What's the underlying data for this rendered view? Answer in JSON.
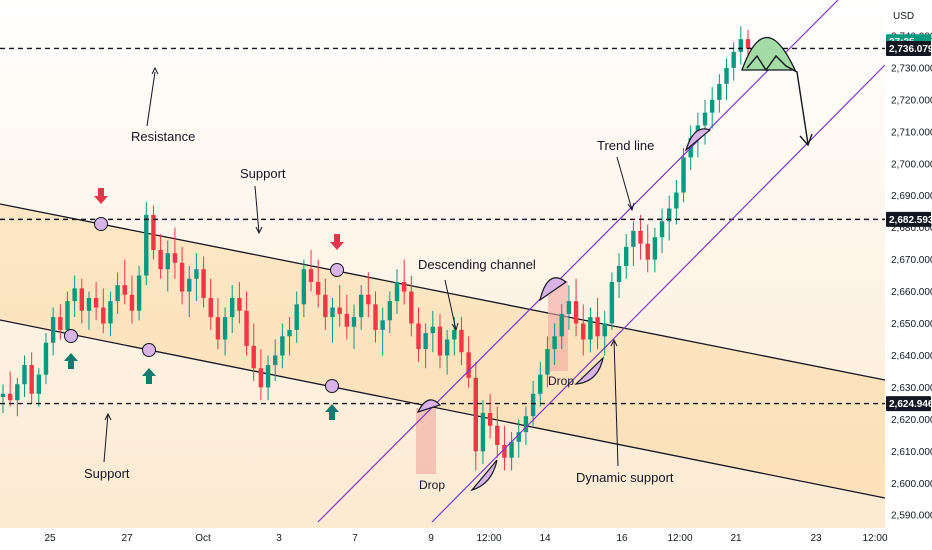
{
  "chart_data": {
    "type": "candlestick",
    "currency": "USD",
    "y_ticks": [
      "2,590.000",
      "2,600.000",
      "2,610.000",
      "2,620.000",
      "2,630.000",
      "2,640.000",
      "2,650.000",
      "2,660.000",
      "2,670.000",
      "2,680.000",
      "2,690.000",
      "2,700.000",
      "2,710.000",
      "2,720.000",
      "2,730.000",
      "2,740.000"
    ],
    "x_ticks": [
      "25",
      "27",
      "Oct",
      "3",
      "7",
      "9",
      "12:00",
      "14",
      "16",
      "12:00",
      "21",
      "23",
      "12:00"
    ],
    "ylim": [
      2586,
      2750
    ],
    "price_tags": [
      {
        "label": "27:35",
        "value": 2738.2,
        "color": "#089981"
      },
      {
        "label": "2,736.079",
        "value": 2736.079,
        "color": "#131722"
      },
      {
        "label": "2,682.593",
        "value": 2682.593,
        "color": "#131722"
      },
      {
        "label": "2,624.946",
        "value": 2624.946,
        "color": "#131722"
      }
    ],
    "levels": [
      {
        "name": "Resistance",
        "value": 2736.079
      },
      {
        "name": "Support",
        "value": 2682.593
      },
      {
        "name": "Support",
        "value": 2624.946
      }
    ],
    "annotations": [
      "Resistance",
      "Support",
      "Support",
      "Descending channel",
      "Trend line",
      "Dynamic support",
      "Drop",
      "Drop"
    ],
    "candles_ohlc": [
      [
        2627,
        2631,
        2622,
        2628
      ],
      [
        2628,
        2635,
        2624,
        2626
      ],
      [
        2626,
        2633,
        2621,
        2631
      ],
      [
        2631,
        2640,
        2627,
        2637
      ],
      [
        2637,
        2641,
        2625,
        2628
      ],
      [
        2628,
        2636,
        2624,
        2634
      ],
      [
        2634,
        2647,
        2631,
        2644
      ],
      [
        2644,
        2655,
        2640,
        2652
      ],
      [
        2652,
        2656,
        2645,
        2648
      ],
      [
        2648,
        2660,
        2645,
        2657
      ],
      [
        2657,
        2665,
        2652,
        2661
      ],
      [
        2661,
        2664,
        2650,
        2654
      ],
      [
        2654,
        2660,
        2648,
        2658
      ],
      [
        2658,
        2663,
        2651,
        2655
      ],
      [
        2655,
        2661,
        2647,
        2650
      ],
      [
        2650,
        2660,
        2646,
        2657
      ],
      [
        2657,
        2666,
        2653,
        2662
      ],
      [
        2662,
        2670,
        2656,
        2659
      ],
      [
        2659,
        2665,
        2650,
        2654
      ],
      [
        2654,
        2668,
        2651,
        2665
      ],
      [
        2665,
        2688,
        2662,
        2684
      ],
      [
        2684,
        2687,
        2670,
        2673
      ],
      [
        2673,
        2678,
        2664,
        2667
      ],
      [
        2667,
        2676,
        2660,
        2672
      ],
      [
        2672,
        2680,
        2664,
        2669
      ],
      [
        2669,
        2674,
        2656,
        2660
      ],
      [
        2660,
        2668,
        2652,
        2664
      ],
      [
        2664,
        2672,
        2657,
        2667
      ],
      [
        2667,
        2671,
        2655,
        2658
      ],
      [
        2658,
        2664,
        2648,
        2652
      ],
      [
        2652,
        2658,
        2642,
        2645
      ],
      [
        2645,
        2655,
        2640,
        2652
      ],
      [
        2652,
        2662,
        2647,
        2658
      ],
      [
        2658,
        2663,
        2650,
        2654
      ],
      [
        2654,
        2660,
        2640,
        2643
      ],
      [
        2643,
        2650,
        2632,
        2636
      ],
      [
        2636,
        2642,
        2626,
        2630
      ],
      [
        2630,
        2640,
        2626,
        2637
      ],
      [
        2637,
        2645,
        2632,
        2640
      ],
      [
        2640,
        2650,
        2636,
        2646
      ],
      [
        2646,
        2652,
        2640,
        2648
      ],
      [
        2648,
        2660,
        2644,
        2656
      ],
      [
        2656,
        2670,
        2652,
        2667
      ],
      [
        2667,
        2673,
        2660,
        2663
      ],
      [
        2663,
        2670,
        2655,
        2659
      ],
      [
        2659,
        2664,
        2648,
        2652
      ],
      [
        2652,
        2658,
        2644,
        2655
      ],
      [
        2655,
        2662,
        2649,
        2653
      ],
      [
        2653,
        2659,
        2645,
        2649
      ],
      [
        2649,
        2656,
        2642,
        2652
      ],
      [
        2652,
        2662,
        2648,
        2659
      ],
      [
        2659,
        2666,
        2652,
        2656
      ],
      [
        2656,
        2660,
        2644,
        2648
      ],
      [
        2648,
        2655,
        2640,
        2651
      ],
      [
        2651,
        2660,
        2647,
        2657
      ],
      [
        2657,
        2667,
        2653,
        2663
      ],
      [
        2663,
        2670,
        2656,
        2660
      ],
      [
        2660,
        2665,
        2646,
        2650
      ],
      [
        2650,
        2655,
        2638,
        2642
      ],
      [
        2642,
        2650,
        2636,
        2647
      ],
      [
        2647,
        2654,
        2641,
        2649
      ],
      [
        2649,
        2653,
        2636,
        2640
      ],
      [
        2640,
        2648,
        2634,
        2645
      ],
      [
        2645,
        2652,
        2640,
        2648
      ],
      [
        2648,
        2652,
        2637,
        2641
      ],
      [
        2641,
        2646,
        2630,
        2633
      ],
      [
        2633,
        2638,
        2604,
        2610
      ],
      [
        2610,
        2626,
        2606,
        2622
      ],
      [
        2622,
        2628,
        2614,
        2618
      ],
      [
        2618,
        2624,
        2608,
        2612
      ],
      [
        2612,
        2618,
        2604,
        2608
      ],
      [
        2608,
        2616,
        2604,
        2613
      ],
      [
        2613,
        2620,
        2608,
        2616
      ],
      [
        2616,
        2624,
        2612,
        2621
      ],
      [
        2621,
        2632,
        2618,
        2628
      ],
      [
        2628,
        2638,
        2624,
        2634
      ],
      [
        2634,
        2646,
        2630,
        2642
      ],
      [
        2642,
        2650,
        2637,
        2646
      ],
      [
        2646,
        2656,
        2642,
        2653
      ],
      [
        2653,
        2662,
        2648,
        2657
      ],
      [
        2657,
        2664,
        2646,
        2650
      ],
      [
        2650,
        2656,
        2640,
        2645
      ],
      [
        2645,
        2655,
        2641,
        2652
      ],
      [
        2652,
        2658,
        2642,
        2646
      ],
      [
        2646,
        2654,
        2640,
        2650
      ],
      [
        2650,
        2666,
        2648,
        2663
      ],
      [
        2663,
        2672,
        2658,
        2668
      ],
      [
        2668,
        2678,
        2664,
        2674
      ],
      [
        2674,
        2682,
        2668,
        2679
      ],
      [
        2679,
        2684,
        2670,
        2675
      ],
      [
        2675,
        2681,
        2666,
        2670
      ],
      [
        2670,
        2680,
        2666,
        2677
      ],
      [
        2677,
        2686,
        2672,
        2682
      ],
      [
        2682,
        2690,
        2676,
        2686
      ],
      [
        2686,
        2695,
        2681,
        2691
      ],
      [
        2691,
        2705,
        2688,
        2702
      ],
      [
        2702,
        2712,
        2698,
        2708
      ],
      [
        2708,
        2716,
        2702,
        2712
      ],
      [
        2712,
        2720,
        2706,
        2716
      ],
      [
        2716,
        2724,
        2711,
        2720
      ],
      [
        2720,
        2728,
        2716,
        2725
      ],
      [
        2725,
        2733,
        2720,
        2730
      ],
      [
        2730,
        2738,
        2726,
        2735
      ],
      [
        2735,
        2743,
        2731,
        2739
      ],
      [
        2739,
        2742,
        2733,
        2736
      ]
    ]
  }
}
